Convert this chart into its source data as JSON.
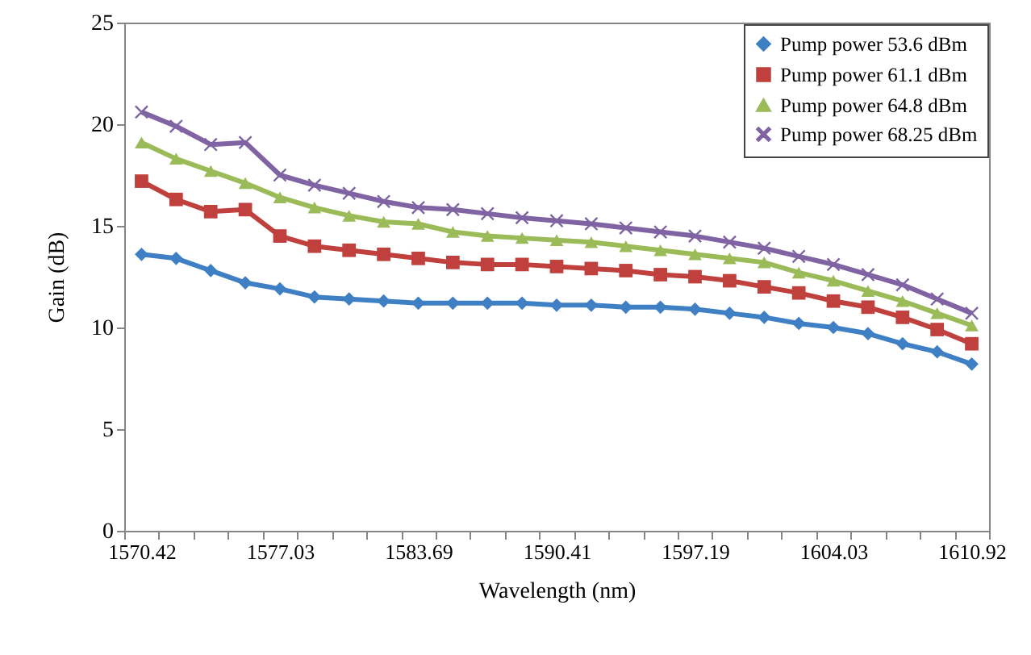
{
  "chart_data": {
    "type": "line",
    "xlabel": "Wavelength (nm)",
    "ylabel": "Gain (dB)",
    "categories": [
      "1570.42",
      null,
      null,
      null,
      "1577.03",
      null,
      null,
      null,
      "1583.69",
      null,
      null,
      null,
      "1590.41",
      null,
      null,
      null,
      "1597.19",
      null,
      null,
      null,
      "1604.03",
      null,
      null,
      null,
      "1610.92"
    ],
    "ylim": [
      0,
      25
    ],
    "yticks": [
      0,
      5,
      10,
      15,
      20,
      25
    ],
    "grid": false,
    "legend": "top right",
    "line_style": "solid",
    "series": [
      {
        "name": "Pump power 53.6 dBm",
        "color": "#3f7fc4",
        "marker": "diamond",
        "values": [
          13.6,
          13.4,
          12.8,
          12.2,
          11.9,
          11.5,
          11.4,
          11.3,
          11.2,
          11.2,
          11.2,
          11.2,
          11.1,
          11.1,
          11.0,
          11.0,
          10.9,
          10.7,
          10.5,
          10.2,
          10.0,
          9.7,
          9.2,
          8.8,
          8.2
        ]
      },
      {
        "name": "Pump power 61.1 dBm",
        "color": "#c0403d",
        "marker": "square",
        "values": [
          17.2,
          16.3,
          15.7,
          15.8,
          14.5,
          14.0,
          13.8,
          13.6,
          13.4,
          13.2,
          13.1,
          13.1,
          13.0,
          12.9,
          12.8,
          12.6,
          12.5,
          12.3,
          12.0,
          11.7,
          11.3,
          11.0,
          10.5,
          9.9,
          9.2
        ]
      },
      {
        "name": "Pump power 64.8 dBm",
        "color": "#9bbb59",
        "marker": "triangle",
        "values": [
          19.1,
          18.3,
          17.7,
          17.1,
          16.4,
          15.9,
          15.5,
          15.2,
          15.1,
          14.7,
          14.5,
          14.4,
          14.3,
          14.2,
          14.0,
          13.8,
          13.6,
          13.4,
          13.2,
          12.7,
          12.3,
          11.8,
          11.3,
          10.7,
          10.1
        ]
      },
      {
        "name": "Pump power 68.25 dBm",
        "color": "#7f63a2",
        "marker": "cross",
        "values": [
          20.6,
          19.9,
          19.0,
          19.1,
          17.5,
          17.0,
          16.6,
          16.2,
          15.9,
          15.8,
          15.6,
          15.4,
          15.25,
          15.1,
          14.9,
          14.7,
          14.5,
          14.2,
          13.9,
          13.5,
          13.1,
          12.6,
          12.1,
          11.4,
          10.7
        ]
      }
    ]
  }
}
